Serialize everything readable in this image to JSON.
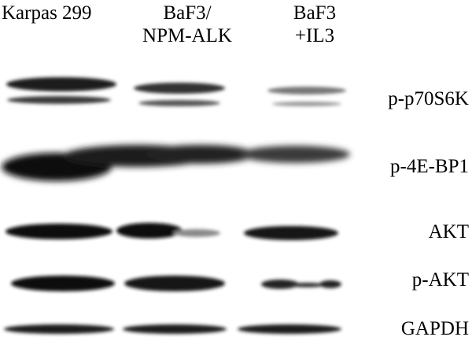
{
  "lanes": [
    {
      "label_line1": "Karpas 299",
      "label_line2": ""
    },
    {
      "label_line1": "BaF3/",
      "label_line2": "NPM-ALK"
    },
    {
      "label_line1": "BaF3",
      "label_line2": "+IL3"
    }
  ],
  "proteins": {
    "p70s6k": "p-p70S6K",
    "4ebp1": "p-4E-BP1",
    "akt": "AKT",
    "pakt": "p-AKT",
    "gapdh": "GAPDH"
  }
}
